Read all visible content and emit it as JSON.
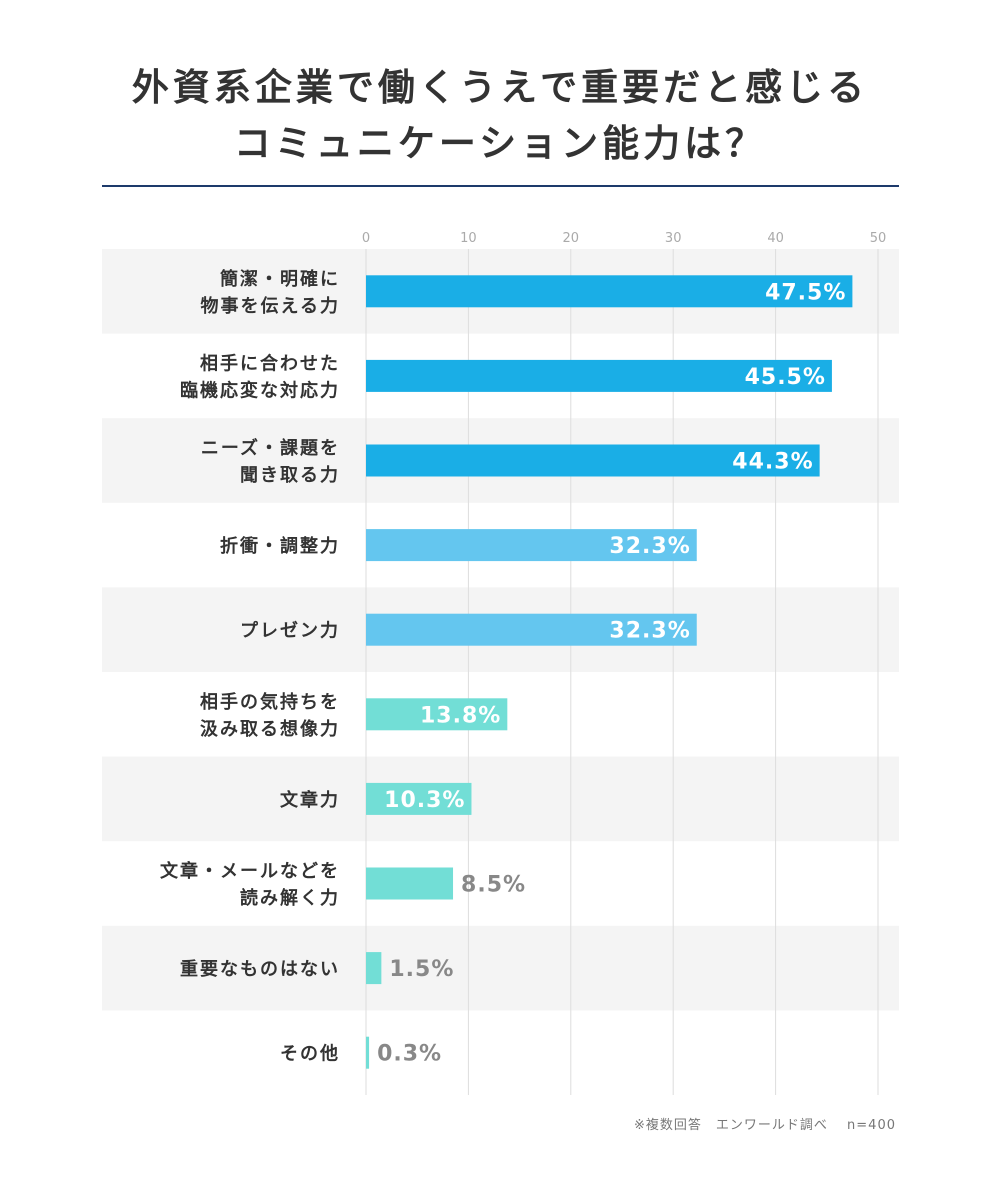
{
  "title_lines": [
    "外資系企業で働くうえで重要だと感じる",
    "コミュニケーション能力は？"
  ],
  "footnote": "※複数回答　エンワールド調べ　 n=400",
  "colors": {
    "rule": "#1d3a6b",
    "bar_dark": "#1aaee6",
    "bar_mid": "#64c6ef",
    "bar_teal": "#72ded6",
    "row_shade": "#f4f4f4",
    "label_outside": "#888888",
    "text": "#333333",
    "grid": "#dddddd"
  },
  "chart_data": {
    "type": "bar",
    "orientation": "horizontal",
    "xlim": [
      0,
      50
    ],
    "xticks": [
      0,
      10,
      20,
      30,
      40,
      50
    ],
    "grid": true,
    "categories": [
      [
        "簡潔・明確に",
        "物事を伝える力"
      ],
      [
        "相手に合わせた",
        "臨機応変な対応力"
      ],
      [
        "ニーズ・課題を",
        "聞き取る力"
      ],
      [
        "折衝・調整力"
      ],
      [
        "プレゼン力"
      ],
      [
        "相手の気持ちを",
        "汲み取る想像力"
      ],
      [
        "文章力"
      ],
      [
        "文章・メールなどを",
        "読み解く力"
      ],
      [
        "重要なものはない"
      ],
      [
        "その他"
      ]
    ],
    "values": [
      47.5,
      45.5,
      44.3,
      32.3,
      32.3,
      13.8,
      10.3,
      8.5,
      1.5,
      0.3
    ],
    "value_labels": [
      "47.5%",
      "45.5%",
      "44.3%",
      "32.3%",
      "32.3%",
      "13.8%",
      "10.3%",
      "8.5%",
      "1.5%",
      "0.3%"
    ],
    "bar_color_groups": [
      "dark",
      "dark",
      "dark",
      "mid",
      "mid",
      "teal",
      "teal",
      "teal",
      "teal",
      "teal"
    ]
  }
}
